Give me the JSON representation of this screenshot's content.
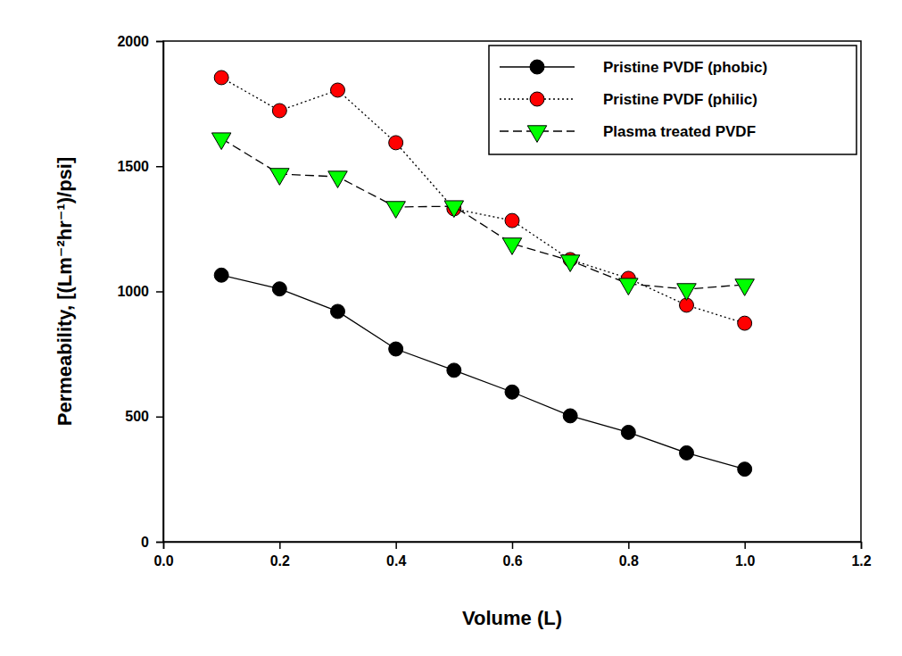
{
  "chart_data": {
    "type": "line",
    "x_label": "Volume (L)",
    "y_label": "Permeability, [(Lm⁻²hr⁻¹)/psi]",
    "x": [
      0.1,
      0.2,
      0.3,
      0.4,
      0.5,
      0.6,
      0.7,
      0.8,
      0.9,
      1.0
    ],
    "xlim": [
      0,
      1.2
    ],
    "xticks": [
      {
        "value": 0,
        "label": "0.0"
      },
      0.2,
      0.4,
      0.6,
      0.8,
      {
        "value": 1,
        "label": "1.0"
      },
      1.2
    ],
    "ylim": [
      0,
      2000
    ],
    "yticks": [
      0,
      500,
      1000,
      1500,
      2000
    ],
    "grid": false,
    "legend": "top-right",
    "series": [
      {
        "name": "Pristine PVDF (phobic)",
        "color": "#000000",
        "marker": "circle",
        "line_style": "solid",
        "values": [
          1065,
          1010,
          920,
          770,
          685,
          598,
          503,
          437,
          355,
          290
        ]
      },
      {
        "name": "Pristine PVDF (philic)",
        "color": "#ff0000",
        "marker": "circle",
        "line_style": "dotted",
        "values": [
          1854,
          1722,
          1804,
          1594,
          1330,
          1283,
          1127,
          1052,
          945,
          873
        ]
      },
      {
        "name": "Plasma treated PVDF",
        "color": "#00ff00",
        "marker": "triangle-down",
        "line_style": "dashed",
        "values": [
          1611,
          1469,
          1458,
          1337,
          1340,
          1191,
          1123,
          1030,
          1009,
          1027
        ]
      }
    ]
  }
}
